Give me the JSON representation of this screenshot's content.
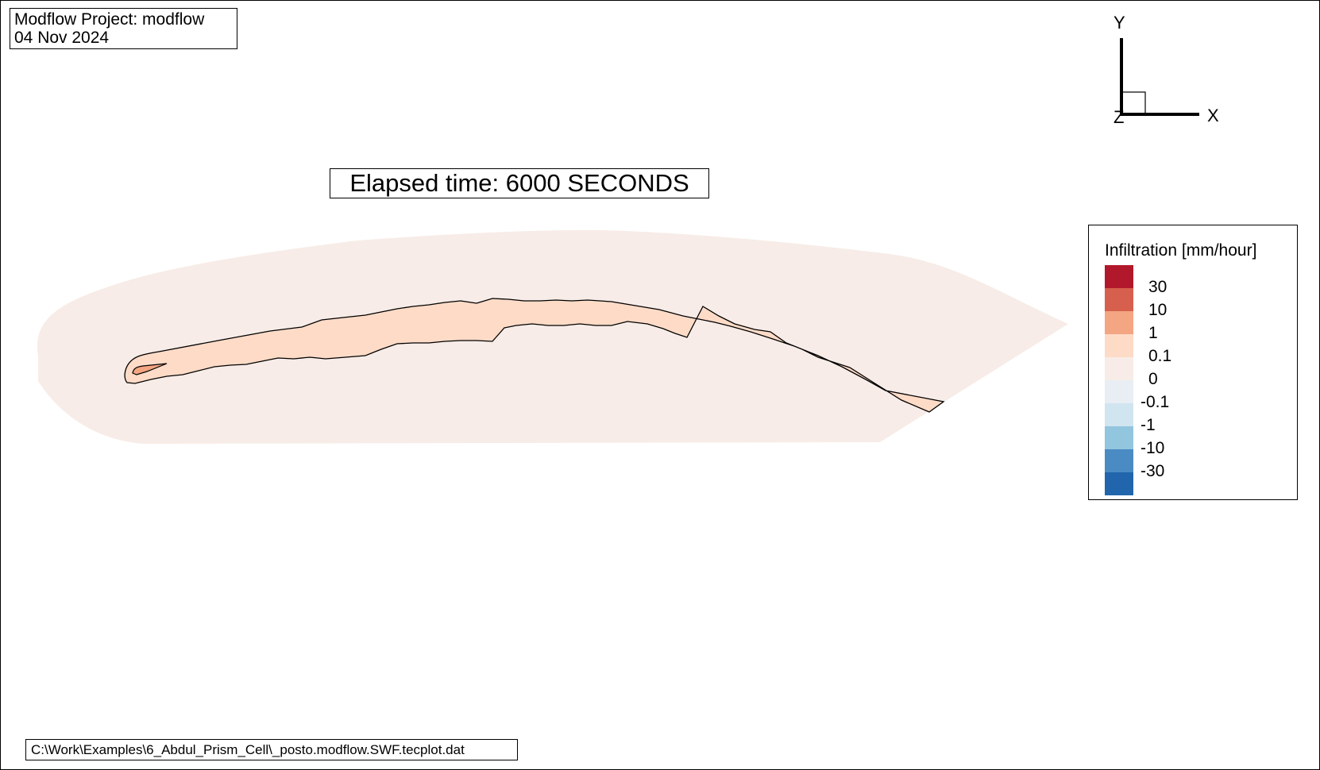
{
  "header": {
    "project_line": "Modflow Project: modflow",
    "date_line": "04 Nov 2024"
  },
  "elapsed_time_label": "Elapsed time: 6000 SECONDS",
  "file_path": "C:\\Work\\Examples\\6_Abdul_Prism_Cell\\_posto.modflow.SWF.tecplot.dat",
  "axes_triad": {
    "y_label": "Y",
    "x_label": "X",
    "z_label": "Z"
  },
  "chart_data": {
    "type": "heatmap",
    "title": "",
    "legend": {
      "title": "Infiltration [mm/hour]",
      "placement": "right",
      "levels": [
        "30",
        "10",
        "1",
        "0.1",
        "0",
        "-0.1",
        "-1",
        "-10",
        "-30"
      ],
      "colors": [
        "#b2182b",
        "#d6604d",
        "#f4a582",
        "#fddbc7",
        "#f7ece7",
        "#e8eef4",
        "#d1e5f0",
        "#92c5de",
        "#4a8bc4",
        "#2166ac"
      ]
    },
    "regions": [
      {
        "name": "domain",
        "color": "#f7ece7"
      },
      {
        "name": "channel",
        "color": "#fddbc7"
      },
      {
        "name": "upstream-tip",
        "color": "#f4a582"
      }
    ]
  }
}
